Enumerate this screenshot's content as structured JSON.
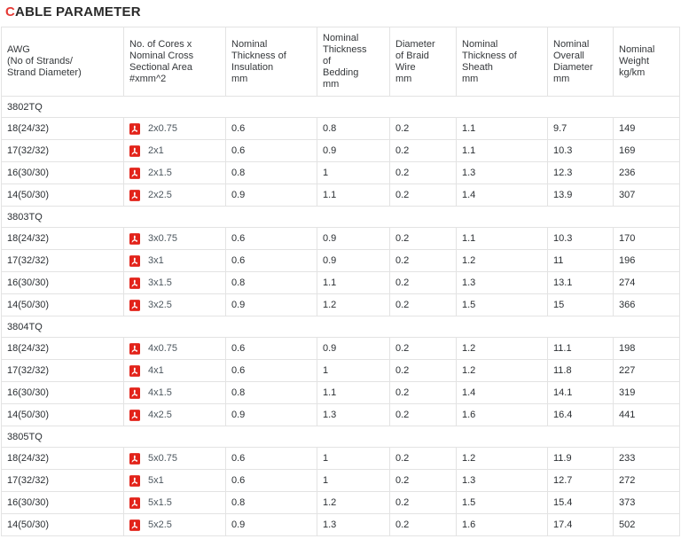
{
  "title": {
    "accent_letter": "C",
    "rest": "ABLE PARAMETER"
  },
  "colors": {
    "title_accent": "#e53935",
    "pdf_icon_red": "#e2231a",
    "border": "#e3e3e3",
    "body_text": "#2b2f33",
    "link_text": "#4c565e"
  },
  "icons": {
    "pdf": "pdf-file-icon"
  },
  "table": {
    "headers": [
      "AWG\n(No of Strands/\nStrand Diameter)",
      "No. of Cores x\nNominal Cross\nSectional Area\n#xmm^2",
      "Nominal\nThickness of\nInsulation\nmm",
      "Nominal\nThickness\nof\nBedding\nmm",
      "Diameter\nof Braid\nWire\nmm",
      "Nominal\nThickness of\nSheath\nmm",
      "Nominal\nOverall\nDiameter\nmm",
      "Nominal\nWeight\nkg/km"
    ],
    "column_keys": [
      "awg",
      "cores",
      "insulation",
      "bedding",
      "braid",
      "sheath",
      "diameter",
      "weight"
    ],
    "sections": [
      {
        "name": "3802TQ",
        "rows": [
          {
            "awg": "18(24/32)",
            "cores": "2x0.75",
            "insulation": "0.6",
            "bedding": "0.8",
            "braid": "0.2",
            "sheath": "1.1",
            "diameter": "9.7",
            "weight": "149"
          },
          {
            "awg": "17(32/32)",
            "cores": "2x1",
            "insulation": "0.6",
            "bedding": "0.9",
            "braid": "0.2",
            "sheath": "1.1",
            "diameter": "10.3",
            "weight": "169"
          },
          {
            "awg": "16(30/30)",
            "cores": "2x1.5",
            "insulation": "0.8",
            "bedding": "1",
            "braid": "0.2",
            "sheath": "1.3",
            "diameter": "12.3",
            "weight": "236"
          },
          {
            "awg": "14(50/30)",
            "cores": "2x2.5",
            "insulation": "0.9",
            "bedding": "1.1",
            "braid": "0.2",
            "sheath": "1.4",
            "diameter": "13.9",
            "weight": "307"
          }
        ]
      },
      {
        "name": "3803TQ",
        "rows": [
          {
            "awg": "18(24/32)",
            "cores": "3x0.75",
            "insulation": "0.6",
            "bedding": "0.9",
            "braid": "0.2",
            "sheath": "1.1",
            "diameter": "10.3",
            "weight": "170"
          },
          {
            "awg": "17(32/32)",
            "cores": "3x1",
            "insulation": "0.6",
            "bedding": "0.9",
            "braid": "0.2",
            "sheath": "1.2",
            "diameter": "11",
            "weight": "196"
          },
          {
            "awg": "16(30/30)",
            "cores": "3x1.5",
            "insulation": "0.8",
            "bedding": "1.1",
            "braid": "0.2",
            "sheath": "1.3",
            "diameter": "13.1",
            "weight": "274"
          },
          {
            "awg": "14(50/30)",
            "cores": "3x2.5",
            "insulation": "0.9",
            "bedding": "1.2",
            "braid": "0.2",
            "sheath": "1.5",
            "diameter": "15",
            "weight": "366"
          }
        ]
      },
      {
        "name": "3804TQ",
        "rows": [
          {
            "awg": "18(24/32)",
            "cores": "4x0.75",
            "insulation": "0.6",
            "bedding": "0.9",
            "braid": "0.2",
            "sheath": "1.2",
            "diameter": "11.1",
            "weight": "198"
          },
          {
            "awg": "17(32/32)",
            "cores": "4x1",
            "insulation": "0.6",
            "bedding": "1",
            "braid": "0.2",
            "sheath": "1.2",
            "diameter": "11.8",
            "weight": "227"
          },
          {
            "awg": "16(30/30)",
            "cores": "4x1.5",
            "insulation": "0.8",
            "bedding": "1.1",
            "braid": "0.2",
            "sheath": "1.4",
            "diameter": "14.1",
            "weight": "319"
          },
          {
            "awg": "14(50/30)",
            "cores": "4x2.5",
            "insulation": "0.9",
            "bedding": "1.3",
            "braid": "0.2",
            "sheath": "1.6",
            "diameter": "16.4",
            "weight": "441"
          }
        ]
      },
      {
        "name": "3805TQ",
        "rows": [
          {
            "awg": "18(24/32)",
            "cores": "5x0.75",
            "insulation": "0.6",
            "bedding": "1",
            "braid": "0.2",
            "sheath": "1.2",
            "diameter": "11.9",
            "weight": "233"
          },
          {
            "awg": "17(32/32)",
            "cores": "5x1",
            "insulation": "0.6",
            "bedding": "1",
            "braid": "0.2",
            "sheath": "1.3",
            "diameter": "12.7",
            "weight": "272"
          },
          {
            "awg": "16(30/30)",
            "cores": "5x1.5",
            "insulation": "0.8",
            "bedding": "1.2",
            "braid": "0.2",
            "sheath": "1.5",
            "diameter": "15.4",
            "weight": "373"
          },
          {
            "awg": "14(50/30)",
            "cores": "5x2.5",
            "insulation": "0.9",
            "bedding": "1.3",
            "braid": "0.2",
            "sheath": "1.6",
            "diameter": "17.4",
            "weight": "502"
          }
        ]
      }
    ]
  }
}
